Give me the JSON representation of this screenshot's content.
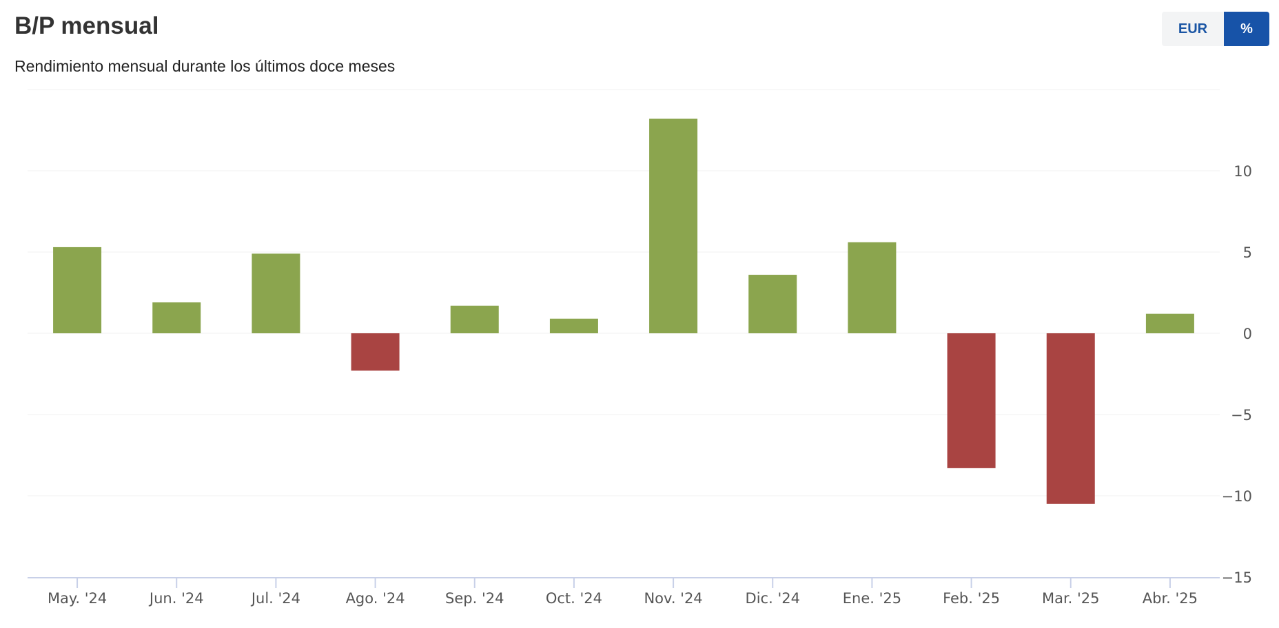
{
  "header": {
    "title": "B/P mensual",
    "subtitle": "Rendimiento mensual durante los últimos doce meses"
  },
  "toggle": {
    "options": [
      "EUR",
      "%"
    ],
    "selected": "%"
  },
  "colors": {
    "positive": "#8ba54e",
    "negative": "#a94442",
    "axis": "#c8d0e8",
    "grid": "#f0f0f0",
    "accent": "#1753a8"
  },
  "chart_data": {
    "type": "bar",
    "title": "B/P mensual",
    "subtitle": "Rendimiento mensual durante los últimos doce meses",
    "categories": [
      "May. '24",
      "Jun. '24",
      "Jul. '24",
      "Ago. '24",
      "Sep. '24",
      "Oct. '24",
      "Nov. '24",
      "Dic. '24",
      "Ene. '25",
      "Feb. '25",
      "Mar. '25",
      "Abr. '25"
    ],
    "values": [
      5.3,
      1.9,
      4.9,
      -2.3,
      1.7,
      0.9,
      13.2,
      3.6,
      5.6,
      -8.3,
      -10.5,
      1.2
    ],
    "ylim": [
      -15,
      15
    ],
    "yticks": [
      10,
      5,
      0,
      -5,
      -10,
      -15
    ],
    "ytick_labels": [
      "10",
      "5",
      "0",
      "−5",
      "−10",
      "−15"
    ],
    "yaxis_position": "right",
    "grid": true,
    "legend": "none"
  }
}
